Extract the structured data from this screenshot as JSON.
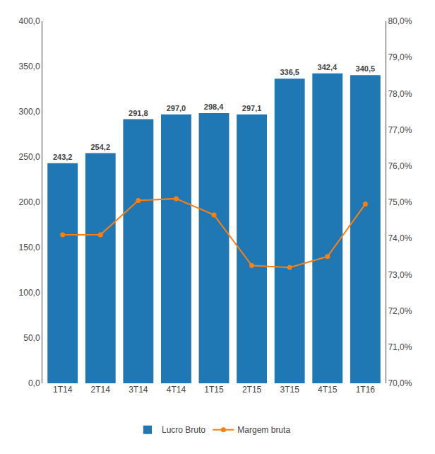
{
  "chart_data": {
    "type": "bar",
    "categories": [
      "1T14",
      "2T14",
      "3T14",
      "4T14",
      "1T15",
      "2T15",
      "3T15",
      "4T15",
      "1T16"
    ],
    "series": [
      {
        "name": "Lucro Bruto",
        "type": "bar",
        "values": [
          243.2,
          254.2,
          291.8,
          297.0,
          298.4,
          297.1,
          336.5,
          342.4,
          340.5
        ],
        "value_labels": [
          "243,2",
          "254,2",
          "291,8",
          "297,0",
          "298,4",
          "297,1",
          "336,5",
          "342,4",
          "340,5"
        ],
        "data_labels": true
      },
      {
        "name": "Margem bruta",
        "type": "line",
        "axis": "y2",
        "marker": "circle",
        "line_style": "solid",
        "values": [
          74.1,
          74.1,
          75.05,
          75.1,
          74.65,
          73.25,
          73.2,
          73.5,
          74.95
        ]
      }
    ],
    "ylim": [
      0,
      400
    ],
    "yticks": [
      {
        "value": 0,
        "label": "0,0"
      },
      {
        "value": 50,
        "label": "50,0"
      },
      {
        "value": 100,
        "label": "100,0"
      },
      {
        "value": 150,
        "label": "150,0"
      },
      {
        "value": 200,
        "label": "200,0"
      },
      {
        "value": 250,
        "label": "250,0"
      },
      {
        "value": 300,
        "label": "300,0"
      },
      {
        "value": 350,
        "label": "350,0"
      },
      {
        "value": 400,
        "label": "400,0"
      }
    ],
    "y2lim": [
      70,
      80
    ],
    "y2ticks": [
      {
        "value": 70,
        "label": "70,0%"
      },
      {
        "value": 71,
        "label": "71,0%"
      },
      {
        "value": 72,
        "label": "72,0%"
      },
      {
        "value": 73,
        "label": "73,0%"
      },
      {
        "value": 74,
        "label": "74,0%"
      },
      {
        "value": 75,
        "label": "75,0%"
      },
      {
        "value": 76,
        "label": "76,0%"
      },
      {
        "value": 77,
        "label": "77,0%"
      },
      {
        "value": 78,
        "label": "78,0%"
      },
      {
        "value": 79,
        "label": "79,0%"
      },
      {
        "value": 80,
        "label": "80,0%"
      }
    ],
    "grid": false,
    "legend": "bottom"
  }
}
